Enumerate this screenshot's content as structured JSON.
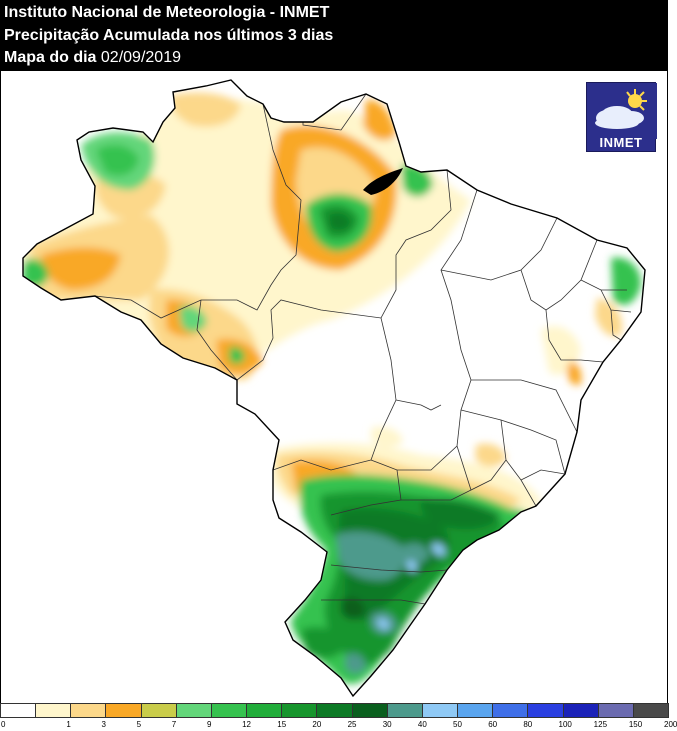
{
  "header": {
    "line1": "Instituto Nacional de Meteorologia - INMET",
    "line2": "Precipitação Acumulada nos últimos 3 dias",
    "line3_label": "Mapa do dia",
    "line3_date": "02/09/2019"
  },
  "logo": {
    "text": "INMET",
    "icon": "sun-cloud-icon"
  },
  "legend": {
    "title": "",
    "classes": [
      {
        "from": "0",
        "to": "1",
        "color": "#ffffff"
      },
      {
        "from": "1",
        "to": "3",
        "color": "#fff6cc"
      },
      {
        "from": "3",
        "to": "5",
        "color": "#fcd88a"
      },
      {
        "from": "5",
        "to": "7",
        "color": "#f9a826"
      },
      {
        "from": "7",
        "to": "9",
        "color": "#c9cc4a"
      },
      {
        "from": "9",
        "to": "12",
        "color": "#63d67a"
      },
      {
        "from": "12",
        "to": "15",
        "color": "#36c24f"
      },
      {
        "from": "15",
        "to": "20",
        "color": "#21ad3a"
      },
      {
        "from": "20",
        "to": "25",
        "color": "#17952d"
      },
      {
        "from": "25",
        "to": "30",
        "color": "#0d7a26"
      },
      {
        "from": "30",
        "to": "40",
        "color": "#0a5f1e"
      },
      {
        "from": "40",
        "to": "50",
        "color": "#4d9a8c"
      },
      {
        "from": "50",
        "to": "60",
        "color": "#8fc9f5"
      },
      {
        "from": "60",
        "to": "80",
        "color": "#5aa5ef"
      },
      {
        "from": "80",
        "to": "100",
        "color": "#3f6fe8"
      },
      {
        "from": "100",
        "to": "125",
        "color": "#2a3fe0"
      },
      {
        "from": "125",
        "to": "150",
        "color": "#1b22b8"
      },
      {
        "from": "150",
        "to": "200",
        "color": "#6b6bb0"
      },
      {
        "from": "200",
        "to": "",
        "color": "#4a4a4a"
      }
    ],
    "ticks": [
      "0",
      "1",
      "3",
      "5",
      "7",
      "9",
      "12",
      "15",
      "20",
      "25",
      "30",
      "40",
      "50",
      "60",
      "80",
      "100",
      "125",
      "150",
      "200"
    ]
  },
  "colors": {
    "outline": "#000000",
    "state_border": "#333333"
  }
}
